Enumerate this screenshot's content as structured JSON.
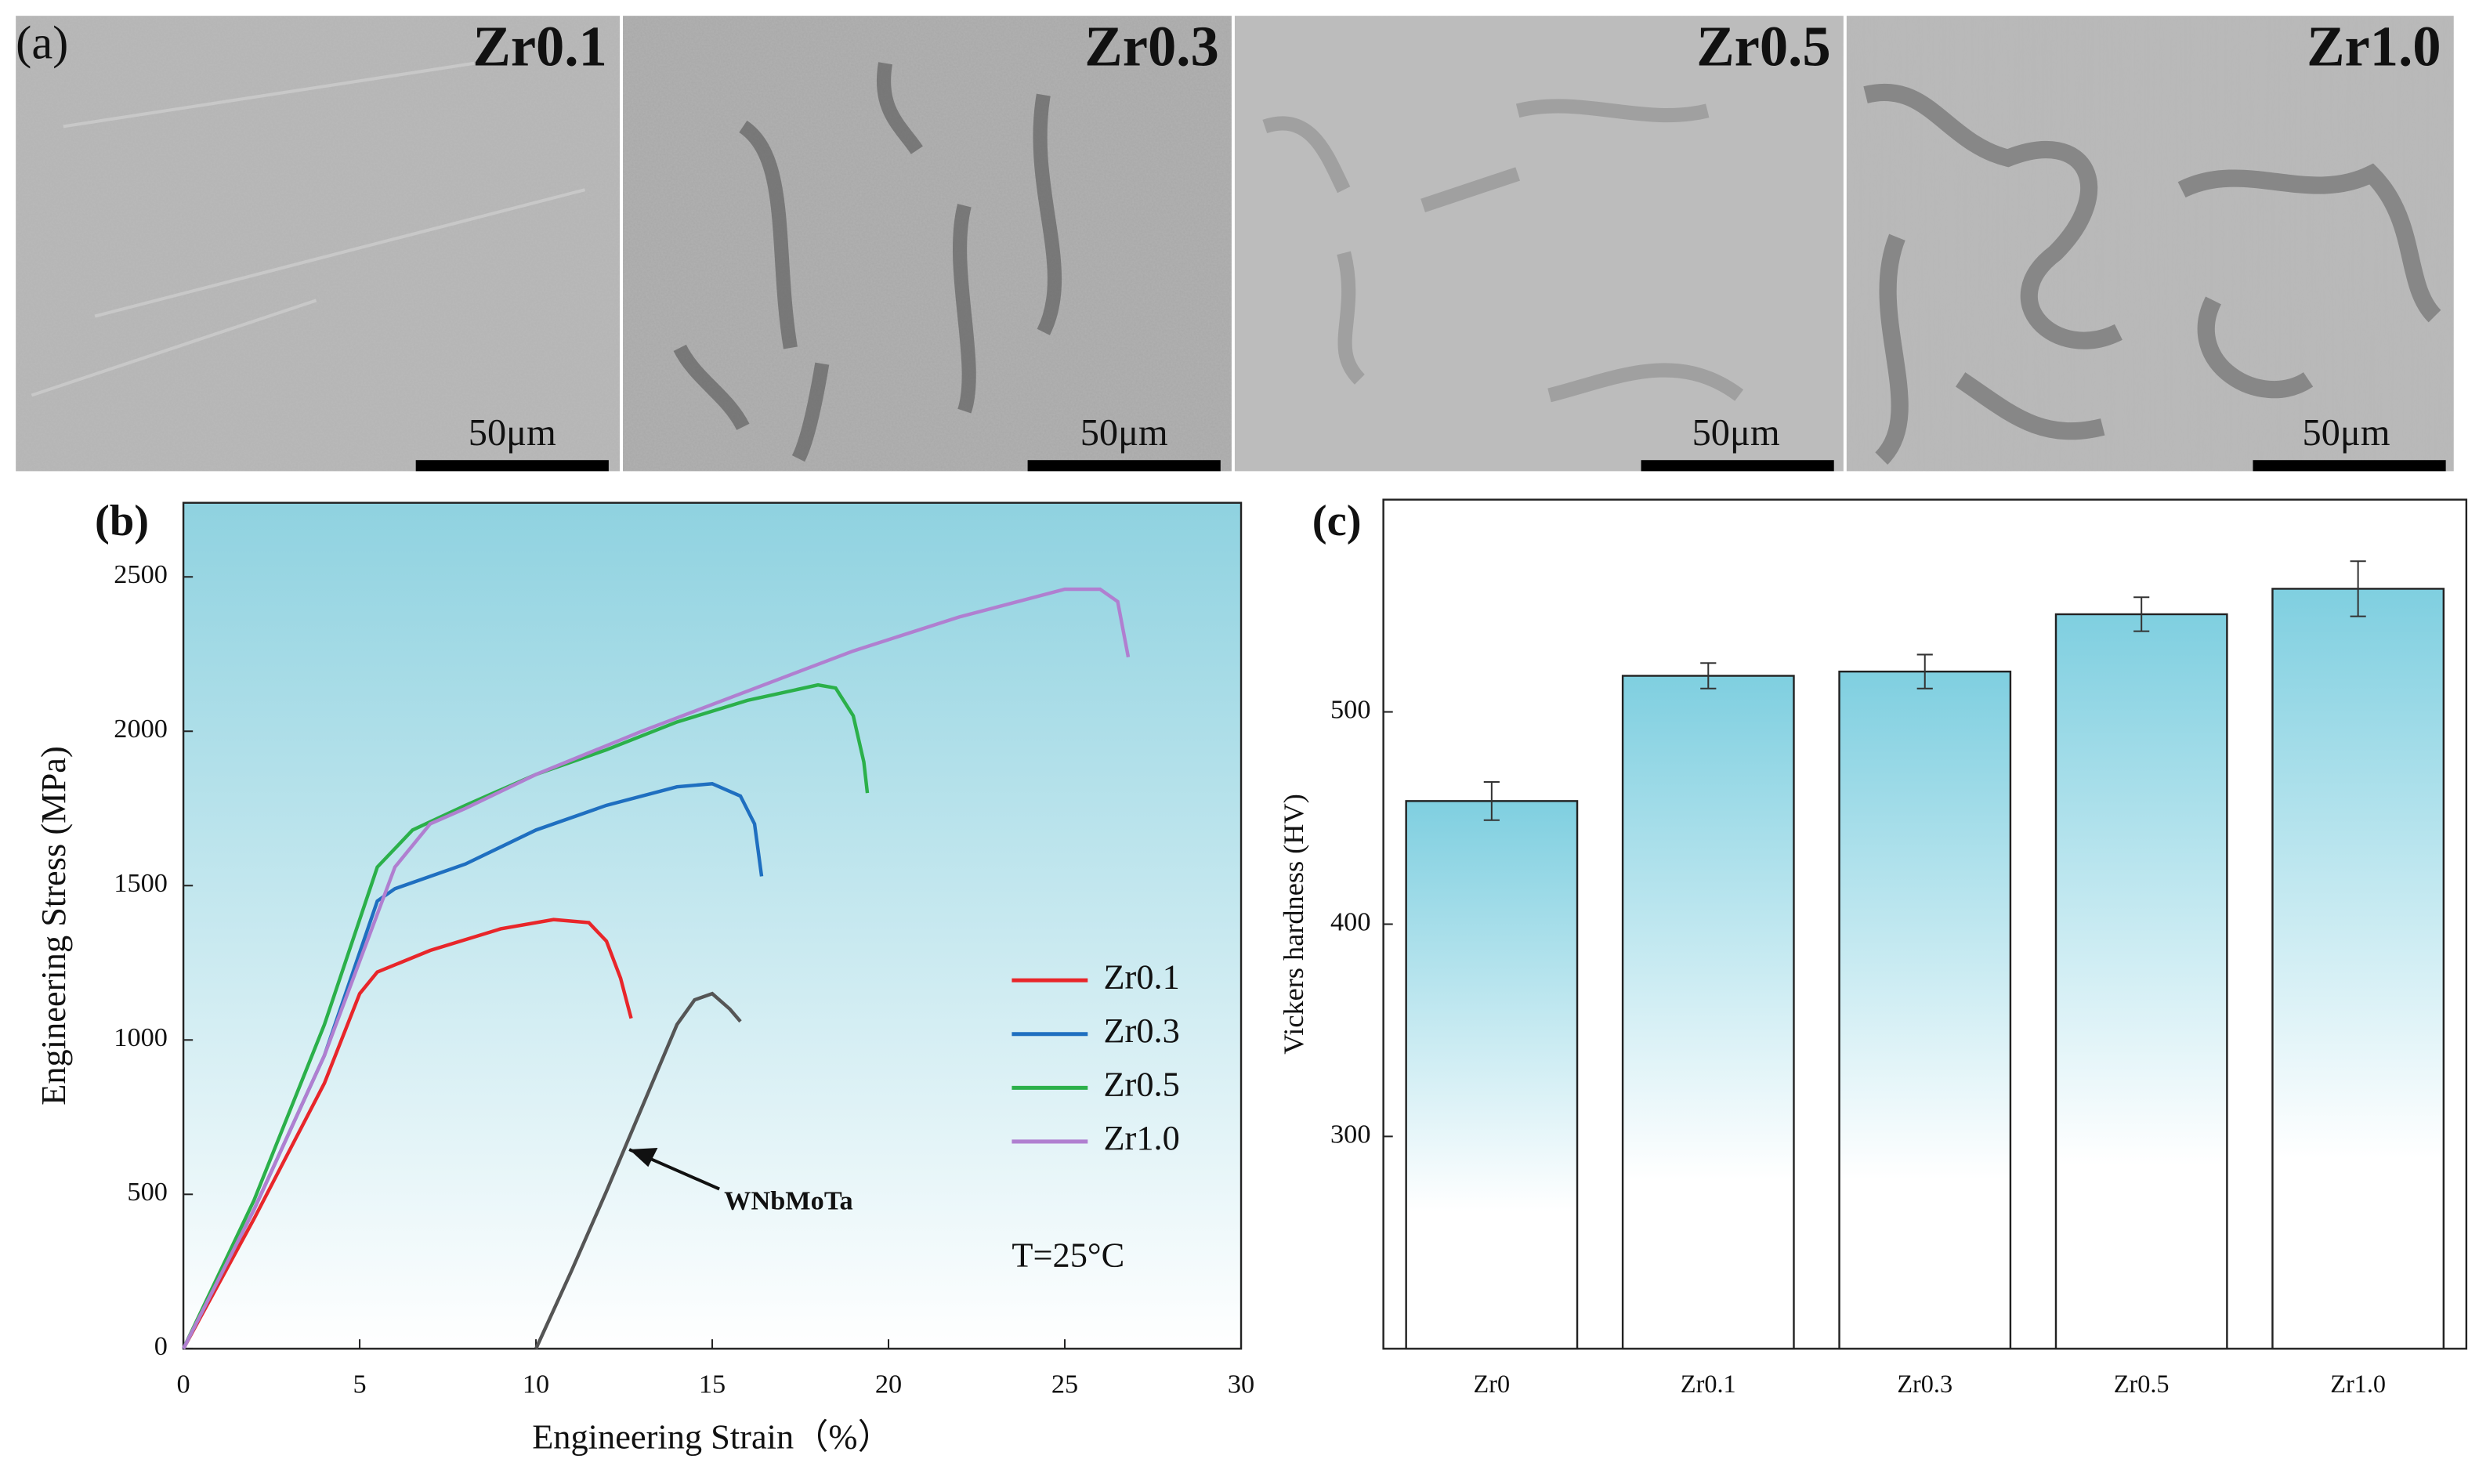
{
  "micrographs": {
    "panel_label": "(a)",
    "images": [
      {
        "label": "Zr0.1",
        "scale": "50μm"
      },
      {
        "label": "Zr0.3",
        "scale": "50μm"
      },
      {
        "label": "Zr0.5",
        "scale": "50μm"
      },
      {
        "label": "Zr1.0",
        "scale": "50μm"
      }
    ]
  },
  "chart_data": [
    {
      "type": "line",
      "panel_label": "(b)",
      "x_label": "Engineering Strain（%）",
      "y_label": "Engineering Stress (MPa)",
      "annotation": "T=25°C",
      "xlim": [
        0,
        30
      ],
      "xticks": [
        0,
        5,
        10,
        15,
        20,
        25,
        30
      ],
      "ylim": [
        0,
        2740
      ],
      "yticks": [
        0,
        500,
        1000,
        1500,
        2000,
        2500
      ],
      "series": [
        {
          "name": "Zr0.1",
          "color": "#e8262a",
          "x": [
            0,
            2,
            4,
            5,
            5.5,
            7,
            9,
            10.5,
            11.5,
            12,
            12.4,
            12.7
          ],
          "values": [
            0,
            420,
            860,
            1150,
            1220,
            1290,
            1360,
            1390,
            1380,
            1320,
            1200,
            1070
          ]
        },
        {
          "name": "Zr0.3",
          "color": "#1f6fc0",
          "x": [
            0,
            2,
            4,
            5.5,
            6,
            8,
            10,
            12,
            14,
            15,
            15.8,
            16.2,
            16.4
          ],
          "values": [
            0,
            450,
            950,
            1450,
            1490,
            1570,
            1680,
            1760,
            1820,
            1830,
            1790,
            1700,
            1530
          ]
        },
        {
          "name": "Zr0.5",
          "color": "#2bb04a",
          "x": [
            0,
            2,
            4,
            5.5,
            6.5,
            8,
            10,
            12,
            14,
            16,
            18,
            18.5,
            19,
            19.3,
            19.4
          ],
          "values": [
            0,
            480,
            1050,
            1560,
            1680,
            1760,
            1860,
            1940,
            2030,
            2100,
            2150,
            2140,
            2050,
            1900,
            1800
          ]
        },
        {
          "name": "Zr1.0",
          "color": "#b07fd0",
          "x": [
            0,
            2,
            4,
            6,
            7,
            8,
            10,
            13,
            16,
            19,
            22,
            25,
            26,
            26.5,
            26.8
          ],
          "values": [
            0,
            450,
            950,
            1560,
            1700,
            1750,
            1860,
            2000,
            2130,
            2260,
            2370,
            2460,
            2460,
            2420,
            2240
          ]
        },
        {
          "name": "WNbMoTa",
          "color": "#555555",
          "in_legend": false,
          "x": [
            10,
            11,
            12,
            13,
            14,
            14.5,
            15,
            15.5,
            15.8
          ],
          "values": [
            0,
            250,
            510,
            780,
            1050,
            1130,
            1150,
            1100,
            1060
          ]
        }
      ]
    },
    {
      "type": "bar",
      "panel_label": "(c)",
      "y_label": "Vickers hardness (HV)",
      "categories": [
        "Zr0",
        "Zr0.1",
        "Zr0.3",
        "Zr0.5",
        "Zr1.0"
      ],
      "values": [
        458,
        517,
        519,
        546,
        558
      ],
      "errors": [
        9,
        6,
        8,
        8,
        13
      ],
      "color": "#8dd3e2",
      "ylim": [
        200,
        600
      ],
      "yticks": [
        300,
        400,
        500
      ]
    }
  ]
}
